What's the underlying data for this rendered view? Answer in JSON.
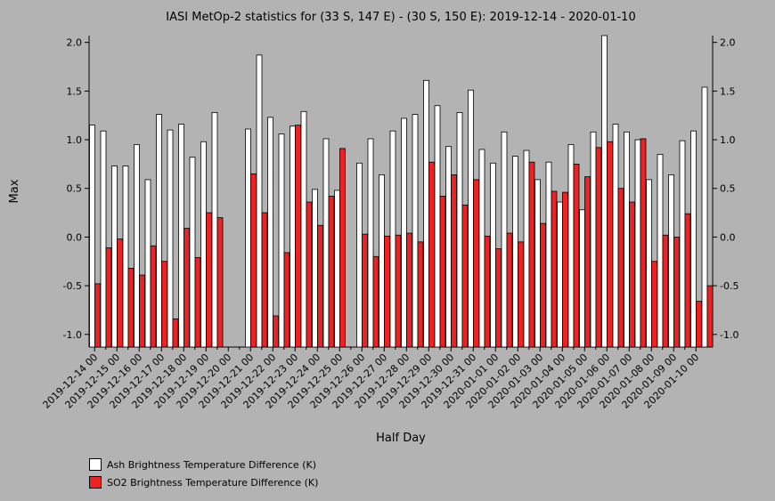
{
  "chart_data": {
    "type": "bar",
    "title": "IASI MetOp-2 statistics for (33 S, 147 E) - (30 S, 150 E): 2019-12-14 - 2020-01-10",
    "xlabel": "Half Day",
    "ylabel": "Max",
    "ylim": [
      -1.13,
      2.07
    ],
    "yticks": [
      -1.0,
      -0.5,
      0.0,
      0.5,
      1.0,
      1.5,
      2.0
    ],
    "ytick_labels": [
      "-1.0",
      "-0.5",
      "0.0",
      "0.5",
      "1.0",
      "1.5",
      "2.0"
    ],
    "xtick_labels": [
      "2019-12-14 00",
      "2019-12-15 00",
      "2019-12-16 00",
      "2019-12-17 00",
      "2019-12-18 00",
      "2019-12-19 00",
      "2019-12-20 00",
      "2019-12-21 00",
      "2019-12-22 00",
      "2019-12-23 00",
      "2019-12-24 00",
      "2019-12-25 00",
      "2019-12-26 00",
      "2019-12-27 00",
      "2019-12-28 00",
      "2019-12-29 00",
      "2019-12-30 00",
      "2019-12-31 00",
      "2020-01-01 00",
      "2020-01-02 00",
      "2020-01-03 00",
      "2020-01-04 00",
      "2020-01-05 00",
      "2020-01-06 00",
      "2020-01-07 00",
      "2020-01-08 00",
      "2020-01-09 00",
      "2020-01-10 00"
    ],
    "grid": false,
    "legend_placement": "bottom-left",
    "colors": {
      "ash": "#ffffff",
      "so2": "#ee2222",
      "background": "#b3b3b3"
    },
    "series": [
      {
        "name": "Ash Brightness Temperature Difference (K)",
        "values": [
          1.15,
          1.09,
          0.73,
          0.73,
          0.95,
          0.59,
          1.26,
          1.1,
          1.16,
          0.82,
          0.98,
          1.28,
          null,
          null,
          1.11,
          1.87,
          1.23,
          1.06,
          1.14,
          1.29,
          0.49,
          1.01,
          0.48,
          null,
          0.76,
          1.01,
          0.64,
          1.09,
          1.22,
          1.26,
          1.61,
          1.35,
          0.93,
          1.28,
          1.51,
          0.9,
          0.76,
          1.08,
          0.83,
          0.89,
          0.59,
          0.77,
          0.36,
          0.95,
          0.28,
          1.08,
          2.07,
          1.16,
          1.08,
          1.0,
          0.59,
          0.85,
          0.64,
          0.99,
          1.09,
          1.54
        ]
      },
      {
        "name": "SO2 Brightness Temperature Difference (K)",
        "values": [
          -0.48,
          -0.11,
          -0.02,
          -0.32,
          -0.39,
          -0.09,
          -0.25,
          -0.84,
          0.09,
          -0.21,
          0.25,
          0.2,
          null,
          null,
          0.65,
          0.25,
          -0.81,
          -0.16,
          1.15,
          0.36,
          0.12,
          0.42,
          0.91,
          null,
          0.03,
          -0.2,
          0.01,
          0.02,
          0.04,
          -0.05,
          0.77,
          0.42,
          0.64,
          0.33,
          0.59,
          0.01,
          -0.12,
          0.04,
          -0.05,
          0.77,
          0.14,
          0.47,
          0.46,
          0.75,
          0.62,
          0.92,
          0.98,
          0.5,
          0.36,
          1.01,
          -0.25,
          0.02,
          0.0,
          0.24,
          -0.66,
          -0.5
        ]
      }
    ]
  }
}
